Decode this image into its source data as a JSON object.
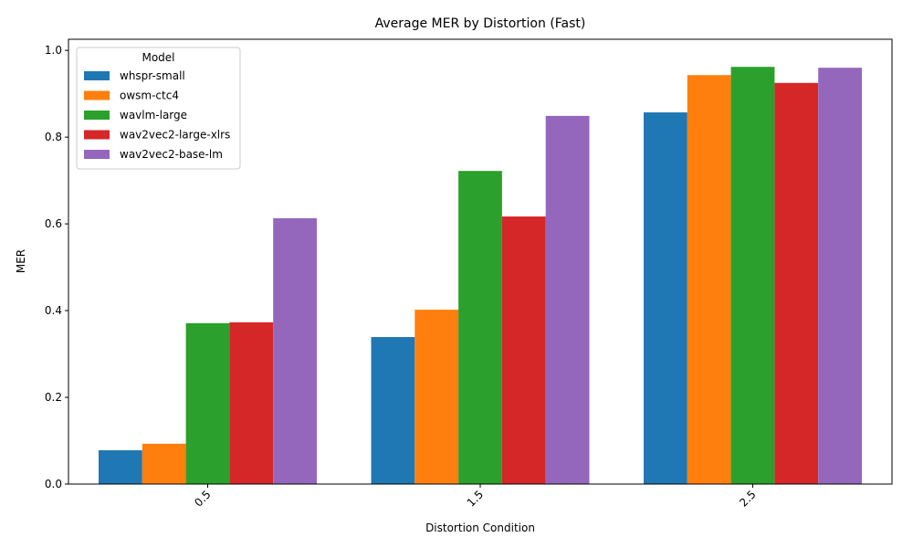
{
  "chart_data": {
    "type": "bar",
    "title": "Average MER by Distortion (Fast)",
    "xlabel": "Distortion Condition",
    "ylabel": "MER",
    "categories": [
      "0.5",
      "1.5",
      "2.5"
    ],
    "ylim": [
      0,
      1.0
    ],
    "yticks": [
      0.0,
      0.2,
      0.4,
      0.6,
      0.8,
      1.0
    ],
    "ytick_labels": [
      "0.0",
      "0.2",
      "0.4",
      "0.6",
      "0.8",
      "1.0"
    ],
    "grid": false,
    "legend": {
      "title": "Model",
      "position": "top-left"
    },
    "series": [
      {
        "name": "whspr-small",
        "color": "#1f77b4",
        "values": [
          0.078,
          0.339,
          0.857
        ]
      },
      {
        "name": "owsm-ctc4",
        "color": "#ff7f0e",
        "values": [
          0.093,
          0.402,
          0.943
        ]
      },
      {
        "name": "wavlm-large",
        "color": "#2ca02c",
        "values": [
          0.371,
          0.722,
          0.962
        ]
      },
      {
        "name": "wav2vec2-large-xlrs",
        "color": "#d62728",
        "values": [
          0.373,
          0.617,
          0.925
        ]
      },
      {
        "name": "wav2vec2-base-lm",
        "color": "#9467bd",
        "values": [
          0.613,
          0.849,
          0.96
        ]
      }
    ]
  }
}
